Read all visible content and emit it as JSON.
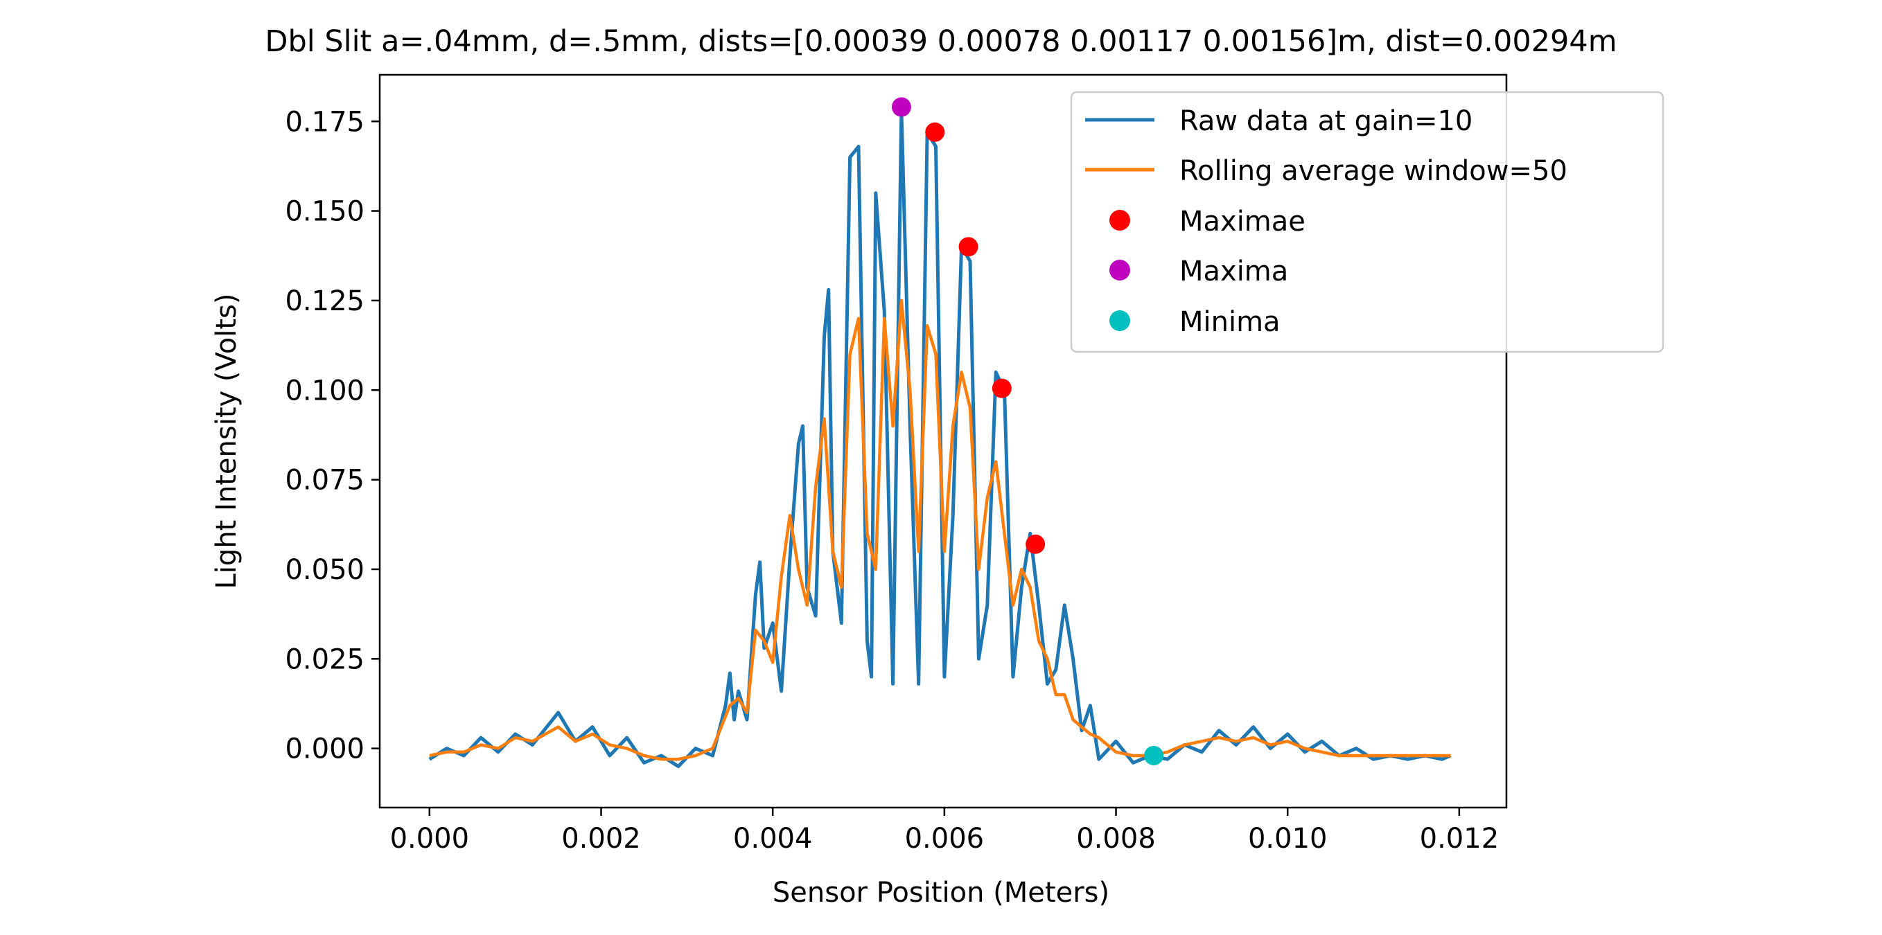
{
  "chart_data": {
    "type": "line",
    "title": "Dbl Slit a=.04mm, d=.5mm, dists=[0.00039 0.00078 0.00117 0.00156]m, dist=0.00294m",
    "xlabel": "Sensor Position (Meters)",
    "ylabel": "Light Intensity (Volts)",
    "xlim": [
      -0.00058,
      0.01255
    ],
    "ylim": [
      -0.0165,
      0.188
    ],
    "xticks": [
      0.0,
      0.002,
      0.004,
      0.006,
      0.008,
      0.01,
      0.012
    ],
    "xtick_labels": [
      "0.000",
      "0.002",
      "0.004",
      "0.006",
      "0.008",
      "0.010",
      "0.012"
    ],
    "yticks": [
      0.0,
      0.025,
      0.05,
      0.075,
      0.1,
      0.125,
      0.15,
      0.175
    ],
    "ytick_labels": [
      "0.000",
      "0.025",
      "0.050",
      "0.075",
      "0.100",
      "0.125",
      "0.150",
      "0.175"
    ],
    "grid": false,
    "legend_position": "top-right",
    "series": [
      {
        "name": "Raw data at gain=10",
        "kind": "line",
        "color": "#1f77b4",
        "x": [
          0.0,
          0.0002,
          0.0004,
          0.0006,
          0.0008,
          0.001,
          0.0012,
          0.0015,
          0.0017,
          0.0019,
          0.0021,
          0.0023,
          0.0025,
          0.0027,
          0.0029,
          0.0031,
          0.0033,
          0.00345,
          0.0035,
          0.00355,
          0.0036,
          0.0037,
          0.0038,
          0.00385,
          0.0039,
          0.004,
          0.0041,
          0.0042,
          0.0043,
          0.00435,
          0.0044,
          0.0045,
          0.0046,
          0.00465,
          0.0047,
          0.0048,
          0.0049,
          0.005,
          0.0051,
          0.00515,
          0.0052,
          0.0053,
          0.0054,
          0.0055,
          0.0056,
          0.0057,
          0.0058,
          0.0059,
          0.006,
          0.0061,
          0.0062,
          0.0063,
          0.0064,
          0.0065,
          0.0066,
          0.0067,
          0.0068,
          0.0069,
          0.007,
          0.0071,
          0.0072,
          0.0073,
          0.0074,
          0.0075,
          0.0076,
          0.0077,
          0.0078,
          0.008,
          0.0082,
          0.0084,
          0.0086,
          0.0088,
          0.009,
          0.0092,
          0.0094,
          0.0096,
          0.0098,
          0.01,
          0.0102,
          0.0104,
          0.0106,
          0.0108,
          0.011,
          0.0112,
          0.0114,
          0.0116,
          0.0118,
          0.0119
        ],
        "y": [
          -0.003,
          0.0,
          -0.002,
          0.003,
          -0.001,
          0.004,
          0.001,
          0.01,
          0.002,
          0.006,
          -0.002,
          0.003,
          -0.004,
          -0.002,
          -0.005,
          0.0,
          -0.002,
          0.012,
          0.021,
          0.008,
          0.016,
          0.008,
          0.043,
          0.052,
          0.028,
          0.035,
          0.016,
          0.053,
          0.085,
          0.09,
          0.045,
          0.037,
          0.115,
          0.128,
          0.055,
          0.035,
          0.165,
          0.168,
          0.03,
          0.02,
          0.155,
          0.122,
          0.018,
          0.178,
          0.09,
          0.018,
          0.172,
          0.168,
          0.02,
          0.065,
          0.14,
          0.136,
          0.025,
          0.04,
          0.105,
          0.1,
          0.02,
          0.045,
          0.06,
          0.04,
          0.018,
          0.022,
          0.04,
          0.025,
          0.005,
          0.012,
          -0.003,
          0.002,
          -0.004,
          -0.002,
          -0.003,
          0.001,
          -0.001,
          0.005,
          0.001,
          0.006,
          0.0,
          0.004,
          -0.001,
          0.002,
          -0.002,
          0.0,
          -0.003,
          -0.002,
          -0.003,
          -0.002,
          -0.003,
          -0.002
        ]
      },
      {
        "name": "Rolling average window=50",
        "kind": "line",
        "color": "#ff7f0e",
        "x": [
          0.0,
          0.0002,
          0.0004,
          0.0006,
          0.0008,
          0.001,
          0.0012,
          0.0015,
          0.0017,
          0.0019,
          0.0021,
          0.0023,
          0.0025,
          0.0027,
          0.0029,
          0.0031,
          0.0033,
          0.0035,
          0.0036,
          0.0037,
          0.0038,
          0.0039,
          0.004,
          0.0041,
          0.0042,
          0.0043,
          0.0044,
          0.0045,
          0.0046,
          0.0047,
          0.0048,
          0.0049,
          0.005,
          0.0051,
          0.0052,
          0.0053,
          0.0054,
          0.0055,
          0.0056,
          0.0057,
          0.0058,
          0.0059,
          0.006,
          0.0061,
          0.0062,
          0.0063,
          0.0064,
          0.0065,
          0.0066,
          0.0067,
          0.0068,
          0.0069,
          0.007,
          0.0071,
          0.0072,
          0.0073,
          0.0074,
          0.0075,
          0.0076,
          0.0077,
          0.0078,
          0.008,
          0.0082,
          0.0084,
          0.0086,
          0.0088,
          0.009,
          0.0092,
          0.0094,
          0.0096,
          0.0098,
          0.01,
          0.0102,
          0.0104,
          0.0106,
          0.0108,
          0.011,
          0.0112,
          0.0114,
          0.0116,
          0.0118,
          0.0119
        ],
        "y": [
          -0.002,
          -0.001,
          -0.001,
          0.001,
          0.0,
          0.003,
          0.002,
          0.006,
          0.002,
          0.004,
          0.001,
          0.0,
          -0.002,
          -0.003,
          -0.003,
          -0.002,
          0.0,
          0.012,
          0.014,
          0.01,
          0.033,
          0.03,
          0.024,
          0.048,
          0.065,
          0.05,
          0.04,
          0.073,
          0.092,
          0.055,
          0.045,
          0.11,
          0.12,
          0.06,
          0.05,
          0.12,
          0.09,
          0.125,
          0.1,
          0.055,
          0.118,
          0.11,
          0.055,
          0.09,
          0.105,
          0.095,
          0.05,
          0.07,
          0.08,
          0.06,
          0.04,
          0.05,
          0.045,
          0.03,
          0.025,
          0.015,
          0.015,
          0.008,
          0.006,
          0.004,
          0.003,
          -0.001,
          -0.002,
          -0.002,
          -0.001,
          0.001,
          0.002,
          0.003,
          0.002,
          0.003,
          0.001,
          0.002,
          0.0,
          -0.001,
          -0.002,
          -0.002,
          -0.002,
          -0.002,
          -0.002,
          -0.002,
          -0.002,
          -0.002
        ]
      },
      {
        "name": "Maximae",
        "kind": "scatter",
        "color": "#ff0000",
        "x": [
          0.00589,
          0.00628,
          0.00667,
          0.00706
        ],
        "y": [
          0.172,
          0.14,
          0.1005,
          0.057
        ]
      },
      {
        "name": "Maxima",
        "kind": "scatter",
        "color": "#bf00bf",
        "x": [
          0.0055
        ],
        "y": [
          0.179
        ]
      },
      {
        "name": "Minima",
        "kind": "scatter",
        "color": "#00bfbf",
        "x": [
          0.00844
        ],
        "y": [
          -0.002
        ]
      }
    ]
  }
}
